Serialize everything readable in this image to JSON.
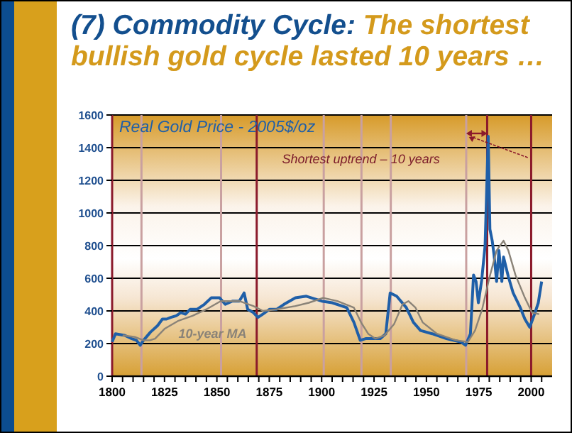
{
  "chart_data": {
    "type": "line",
    "title": "(7) Commodity Cycle:",
    "subtitle": "The shortest bullish gold cycle lasted 10 years …",
    "xlim": [
      1800,
      2010
    ],
    "ylim": [
      0,
      1600
    ],
    "xticks": [
      1800,
      {
        "value": 1805,
        "label": null
      },
      {
        "value": 1810,
        "label": null
      },
      {
        "value": 1815,
        "label": null
      },
      {
        "value": 1820,
        "label": null
      },
      1825,
      {
        "value": 1830,
        "label": null
      },
      {
        "value": 1835,
        "label": null
      },
      {
        "value": 1840,
        "label": null
      },
      {
        "value": 1845,
        "label": null
      },
      1850,
      {
        "value": 1855,
        "label": null
      },
      {
        "value": 1860,
        "label": null
      },
      {
        "value": 1865,
        "label": null
      },
      {
        "value": 1870,
        "label": null
      },
      1875,
      {
        "value": 1880,
        "label": null
      },
      {
        "value": 1885,
        "label": null
      },
      {
        "value": 1890,
        "label": null
      },
      {
        "value": 1895,
        "label": null
      },
      1900,
      {
        "value": 1905,
        "label": null
      },
      {
        "value": 1910,
        "label": null
      },
      {
        "value": 1915,
        "label": null
      },
      {
        "value": 1920,
        "label": null
      },
      1925,
      {
        "value": 1930,
        "label": null
      },
      {
        "value": 1935,
        "label": null
      },
      {
        "value": 1940,
        "label": null
      },
      {
        "value": 1945,
        "label": null
      },
      1950,
      {
        "value": 1955,
        "label": null
      },
      {
        "value": 1960,
        "label": null
      },
      {
        "value": 1965,
        "label": null
      },
      {
        "value": 1970,
        "label": null
      },
      1975,
      {
        "value": 1980,
        "label": null
      },
      {
        "value": 1985,
        "label": null
      },
      {
        "value": 1990,
        "label": null
      },
      {
        "value": 1995,
        "label": null
      },
      2000,
      {
        "value": 2005,
        "label": null
      }
    ],
    "yticks": [
      0,
      200,
      400,
      600,
      800,
      1000,
      1200,
      1400,
      1600
    ],
    "grid": "y",
    "legend": false,
    "marker": "none",
    "series": [
      {
        "name": "Real Gold Price - 2005$/oz",
        "color": "#1f5fa8",
        "x": [
          1800,
          1801.6,
          1806,
          1809.4,
          1811.6,
          1813.4,
          1815,
          1818.3,
          1821.7,
          1824,
          1826,
          1828,
          1830.6,
          1832.8,
          1835,
          1837.3,
          1840.6,
          1844,
          1847.3,
          1851.3,
          1854,
          1857.4,
          1860.7,
          1863,
          1864.7,
          1867.4,
          1869.6,
          1871.9,
          1875.2,
          1878.6,
          1882,
          1887.5,
          1892.7,
          1900,
          1905,
          1912,
          1915.4,
          1918.4,
          1921,
          1928,
          1930.6,
          1932.7,
          1935.8,
          1940.4,
          1943.8,
          1947.2,
          1952.8,
          1959.6,
          1966.4,
          1968.7,
          1971,
          1972.5,
          1973.7,
          1974.8,
          1976.4,
          1978,
          1979.5,
          1980.3,
          1981.4,
          1982.3,
          1983.5,
          1984.6,
          1986,
          1986.8,
          1989.1,
          1991.4,
          1994.8,
          1997,
          1999.3,
          2001.6,
          2003.4,
          2005
        ],
        "values": [
          210,
          260,
          250,
          230,
          220,
          190,
          220,
          270,
          310,
          350,
          350,
          360,
          370,
          390,
          380,
          410,
          410,
          440,
          480,
          480,
          440,
          460,
          460,
          510,
          410,
          390,
          360,
          380,
          410,
          410,
          440,
          480,
          490,
          460,
          450,
          420,
          330,
          220,
          230,
          230,
          260,
          510,
          490,
          420,
          330,
          280,
          260,
          230,
          210,
          190,
          260,
          620,
          580,
          450,
          590,
          800,
          1470,
          900,
          830,
          740,
          580,
          770,
          580,
          730,
          610,
          510,
          420,
          350,
          300,
          380,
          450,
          580
        ]
      },
      {
        "name": "10-year MA",
        "color": "#8a8378",
        "x": [
          1805,
          1811,
          1815,
          1818,
          1820.5,
          1825,
          1831.7,
          1838.4,
          1845,
          1851.8,
          1860.7,
          1867.4,
          1872,
          1878.6,
          1887.5,
          1893.9,
          1900.7,
          1907.5,
          1915.4,
          1918.8,
          1922.2,
          1925.6,
          1930,
          1934.6,
          1938.6,
          1941.4,
          1944.8,
          1948.2,
          1955,
          1964,
          1969.8,
          1973.2,
          1976.6,
          1980,
          1983.5,
          1986.8,
          1989.1,
          1992.5,
          1997,
          2000.4,
          2003.8
        ],
        "values": [
          250,
          240,
          220,
          220,
          230,
          290,
          340,
          370,
          410,
          460,
          460,
          430,
          400,
          410,
          430,
          450,
          480,
          460,
          420,
          330,
          260,
          230,
          250,
          320,
          440,
          460,
          420,
          330,
          260,
          220,
          210,
          280,
          410,
          600,
          770,
          830,
          770,
          620,
          480,
          390,
          380
        ]
      }
    ],
    "ref_lines": [
      {
        "axis": "x",
        "value": 1814,
        "color": "#c9a0a0"
      },
      {
        "axis": "x",
        "value": 1852,
        "color": "#c9a0a0"
      },
      {
        "axis": "x",
        "value": 1869,
        "color": "#8b1a2b"
      },
      {
        "axis": "x",
        "value": 1901,
        "color": "#c9a0a0"
      },
      {
        "axis": "x",
        "value": 1919,
        "color": "#c9a0a0"
      },
      {
        "axis": "x",
        "value": 1933,
        "color": "#c9a0a0"
      },
      {
        "axis": "x",
        "value": 1969,
        "color": "#c9a0a0"
      },
      {
        "axis": "x",
        "value": 1979,
        "color": "#8b1a2b"
      },
      {
        "axis": "x",
        "value": 2000,
        "color": "#8b1a2b"
      }
    ],
    "annotations": [
      "Shortest uptrend – 10 years"
    ]
  }
}
